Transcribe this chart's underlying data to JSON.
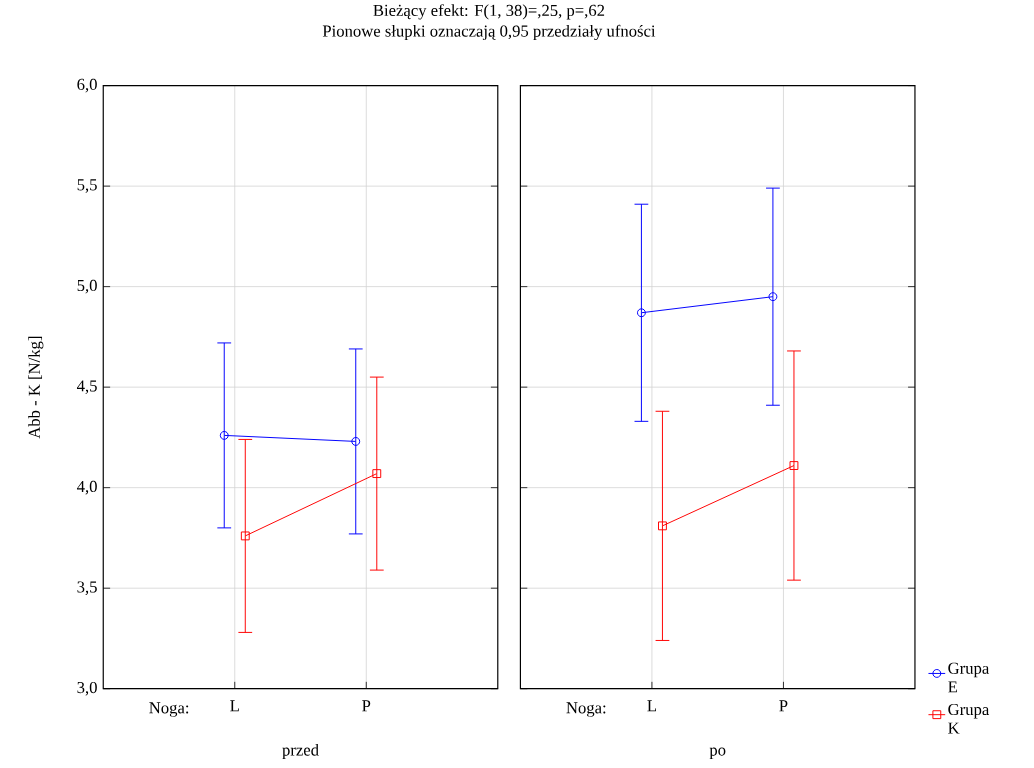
{
  "chart_data": [
    {
      "type": "line",
      "title": "Bieżący efekt: F(1, 38)=,25, p=,62",
      "subtitle": "Pionowe słupki oznaczają 0,95 przedziały ufności",
      "xlabel": "przed",
      "ylabel": "Abb - K [N/kg]",
      "annotations": [
        "Noga:"
      ],
      "categories": [
        "L",
        "P"
      ],
      "ylim": [
        3,
        6
      ],
      "yticks": [
        {
          "value": 3,
          "label": "3,0"
        },
        {
          "value": 3.5,
          "label": "3,5"
        },
        {
          "value": 4,
          "label": "4,0"
        },
        {
          "value": 4.5,
          "label": "4,5"
        },
        {
          "value": 5,
          "label": "5,0"
        },
        {
          "value": 5.5,
          "label": "5,5"
        },
        {
          "value": 6,
          "label": "6,0"
        }
      ],
      "grid": true,
      "series": [
        {
          "color": "#0000ff",
          "marker": "circle",
          "values": [
            4.26,
            4.23
          ],
          "errors": [
            0.46,
            0.46
          ]
        },
        {
          "color": "#ff0000",
          "marker": "square",
          "values": [
            3.76,
            4.07
          ],
          "errors": [
            0.48,
            0.48
          ]
        }
      ]
    },
    {
      "type": "line",
      "xlabel": "po",
      "annotations": [
        "Noga:"
      ],
      "categories": [
        "L",
        "P"
      ],
      "tick_labels": "x",
      "legend": "bottom right",
      "ylim": [
        3,
        6
      ],
      "yticks": [
        {
          "value": 3,
          "label": null
        },
        {
          "value": 3.5,
          "label": null
        },
        {
          "value": 4,
          "label": null
        },
        {
          "value": 4.5,
          "label": null
        },
        {
          "value": 5,
          "label": null
        },
        {
          "value": 5.5,
          "label": null
        },
        {
          "value": 6,
          "label": null
        }
      ],
      "grid": true,
      "series": [
        {
          "name": "Grupa E",
          "color": "#0000ff",
          "marker": "circle",
          "values": [
            4.87,
            4.95
          ],
          "errors": [
            0.54,
            0.54
          ]
        },
        {
          "name": "Grupa K",
          "color": "#ff0000",
          "marker": "square",
          "values": [
            3.81,
            4.11
          ],
          "errors": [
            0.57,
            0.57
          ]
        }
      ]
    }
  ]
}
